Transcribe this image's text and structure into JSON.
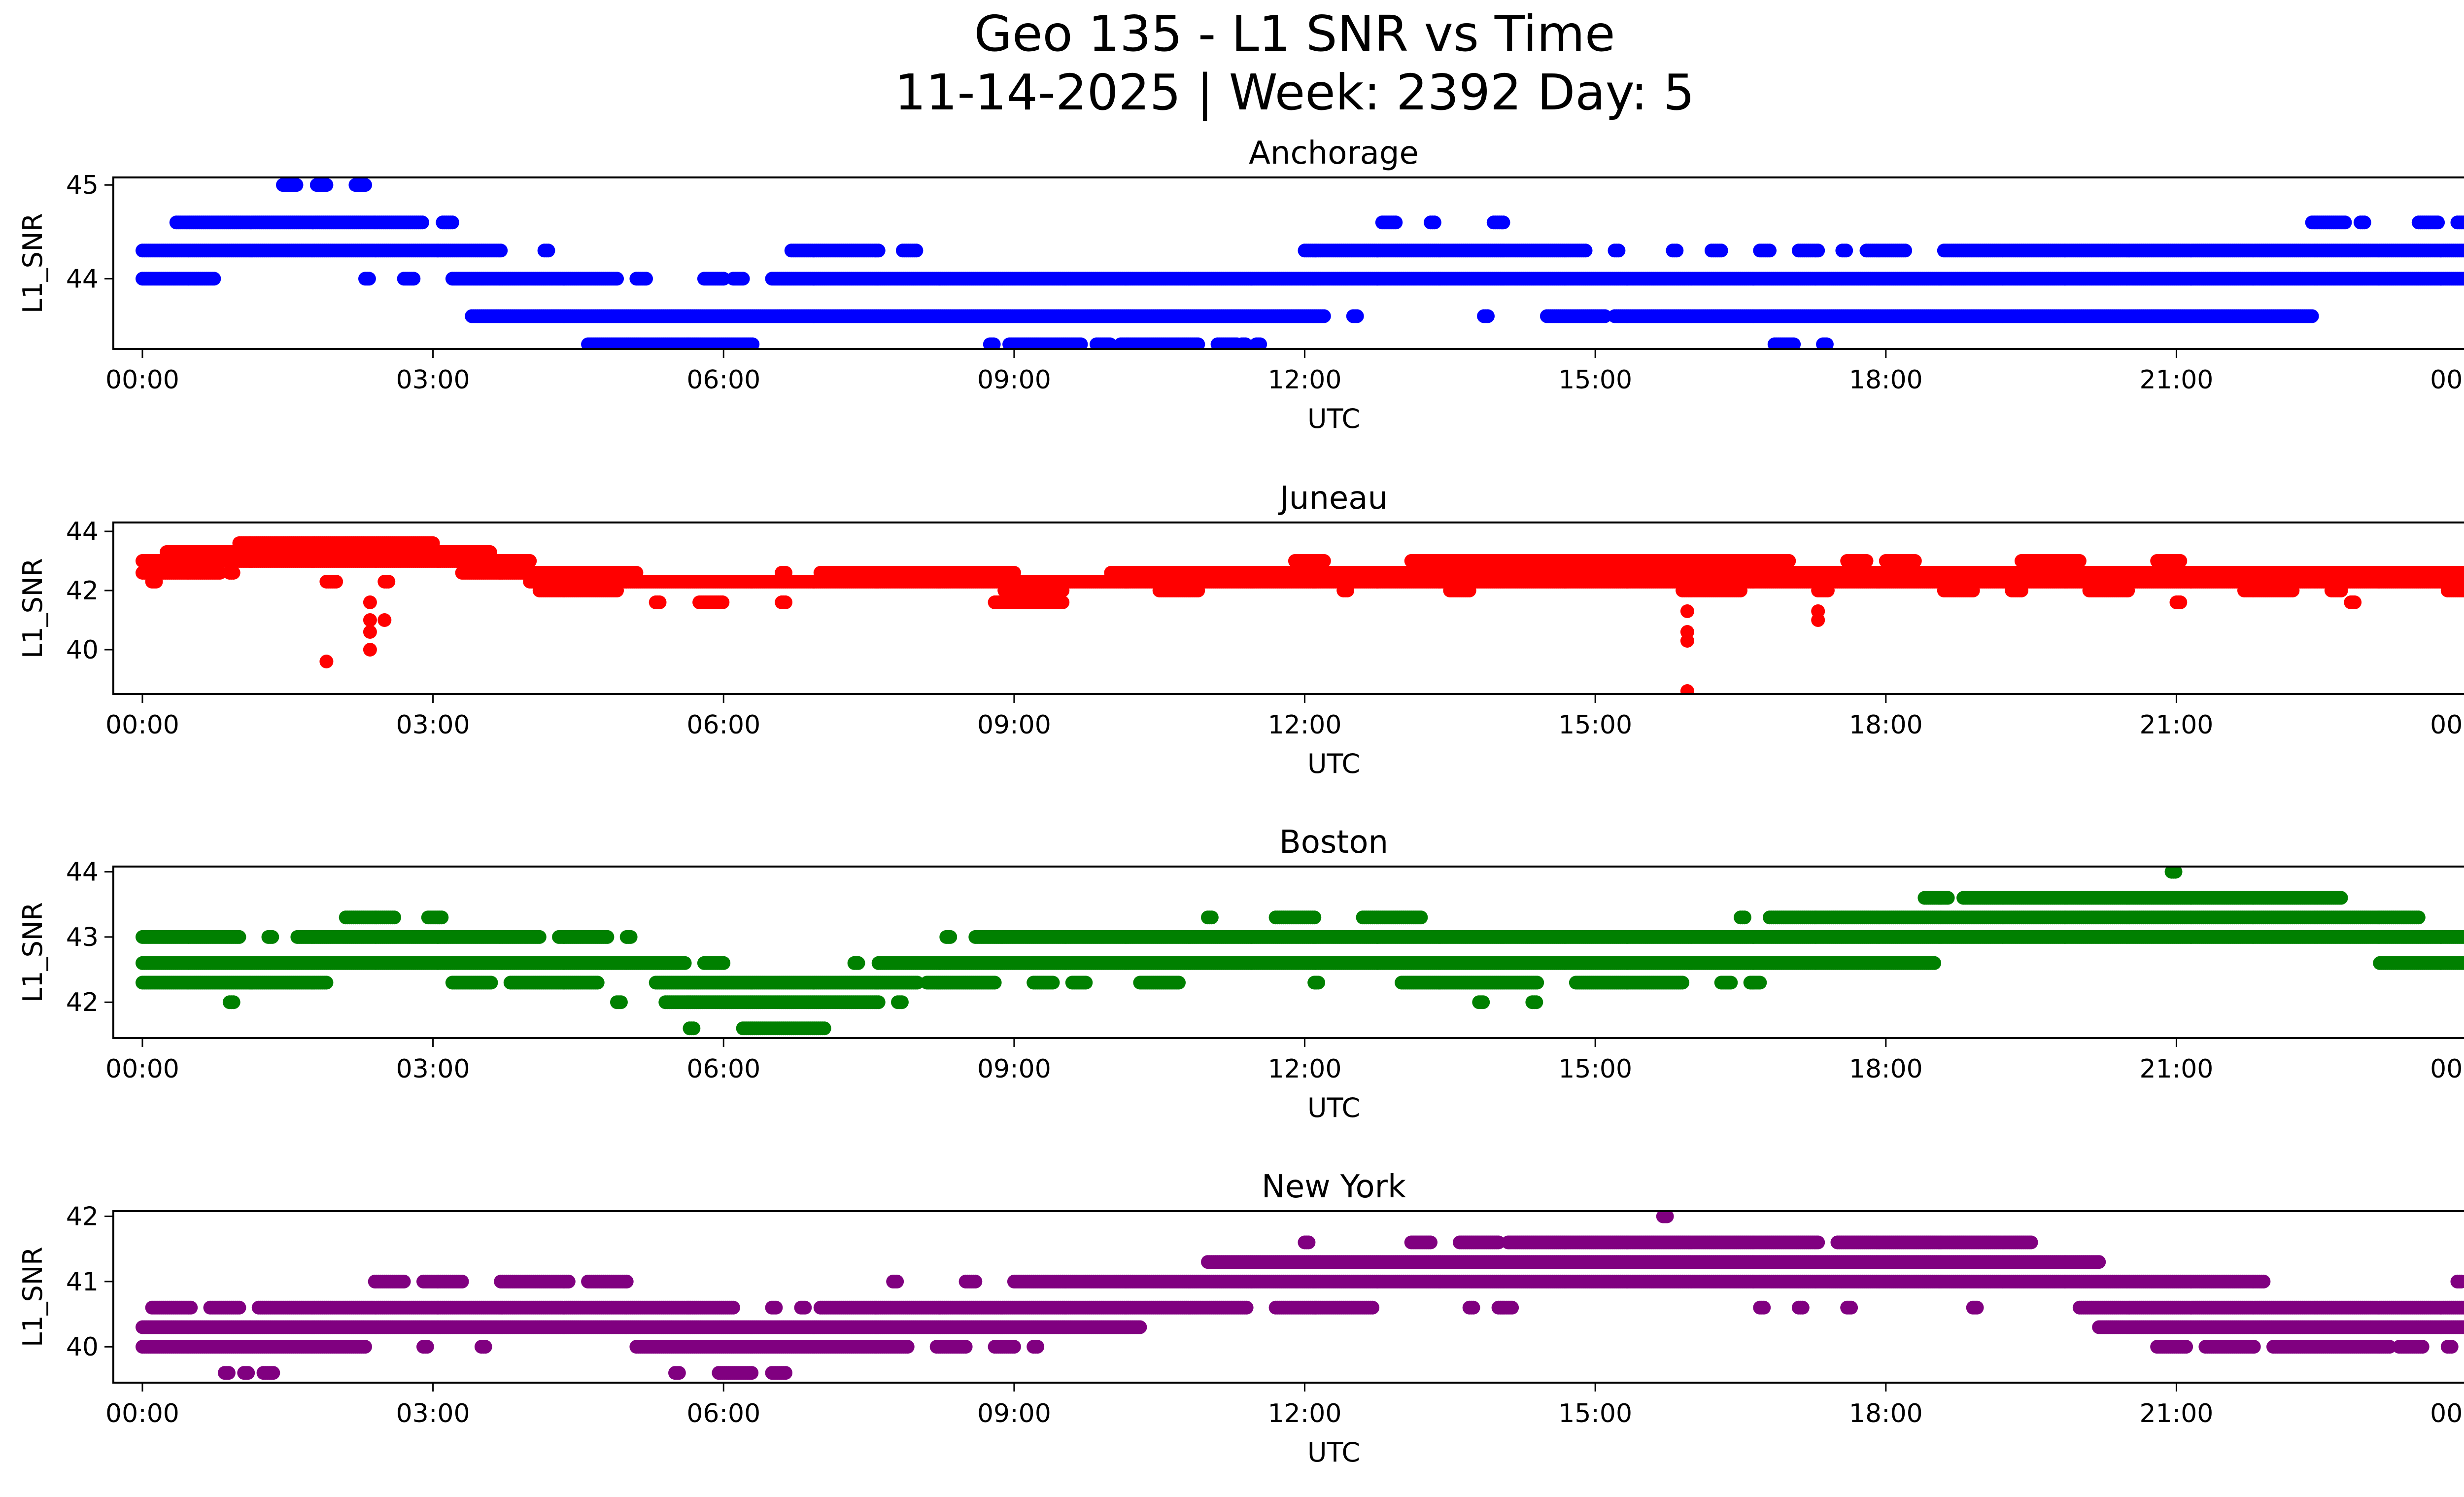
{
  "title_line1": "Geo 135 - L1 SNR vs Time",
  "title_line2": "11-14-2025 | Week: 2392 Day: 5",
  "chart_data": [
    {
      "type": "scatter",
      "title": "Anchorage",
      "color": "#0000ff",
      "xlabel": "UTC",
      "ylabel": "L1_SNR",
      "xlim": [
        -0.3,
        24.9
      ],
      "ylim": [
        43.25,
        45.08
      ],
      "yticks": [
        44,
        45
      ],
      "ytick_labels": [
        "44",
        "45"
      ],
      "xticks": [
        0,
        3,
        6,
        9,
        12,
        15,
        18,
        21,
        24
      ],
      "xtick_labels": [
        "00:00",
        "03:00",
        "06:00",
        "09:00",
        "12:00",
        "15:00",
        "18:00",
        "21:00",
        "00:00"
      ],
      "levels": [
        {
          "y": 45.0,
          "segments": [
            [
              1.45,
              1.6
            ],
            [
              1.8,
              1.9
            ],
            [
              2.2,
              2.3
            ]
          ]
        },
        {
          "y": 44.6,
          "segments": [
            [
              0.35,
              2.9
            ],
            [
              3.1,
              3.2
            ],
            [
              12.8,
              12.95
            ],
            [
              13.3,
              13.35
            ],
            [
              13.95,
              14.05
            ],
            [
              22.4,
              22.75
            ],
            [
              22.9,
              22.95
            ],
            [
              23.5,
              23.7
            ],
            [
              23.9,
              24.0
            ]
          ]
        },
        {
          "y": 44.3,
          "segments": [
            [
              0.0,
              3.7
            ],
            [
              4.15,
              4.2
            ],
            [
              6.7,
              7.6
            ],
            [
              7.85,
              8.0
            ],
            [
              12.0,
              14.9
            ],
            [
              15.2,
              15.25
            ],
            [
              15.8,
              15.85
            ],
            [
              16.2,
              16.3
            ],
            [
              16.7,
              16.8
            ],
            [
              17.1,
              17.3
            ],
            [
              17.55,
              17.6
            ],
            [
              17.8,
              18.2
            ],
            [
              18.6,
              24.0
            ]
          ]
        },
        {
          "y": 44.0,
          "segments": [
            [
              0.0,
              0.75
            ],
            [
              2.3,
              2.35
            ],
            [
              2.7,
              2.8
            ],
            [
              3.2,
              4.9
            ],
            [
              5.1,
              5.2
            ],
            [
              5.8,
              6.0
            ],
            [
              6.1,
              6.2
            ],
            [
              6.5,
              24.0
            ]
          ]
        },
        {
          "y": 43.6,
          "segments": [
            [
              3.4,
              12.2
            ],
            [
              12.5,
              12.55
            ],
            [
              13.85,
              13.9
            ],
            [
              14.5,
              15.1
            ],
            [
              15.2,
              22.4
            ]
          ]
        },
        {
          "y": 43.3,
          "segments": [
            [
              4.6,
              6.3
            ],
            [
              8.75,
              8.8
            ],
            [
              8.95,
              9.7
            ],
            [
              9.85,
              10.0
            ],
            [
              10.1,
              10.9
            ],
            [
              11.1,
              11.3
            ],
            [
              11.35,
              11.4
            ],
            [
              11.5,
              11.55
            ],
            [
              16.85,
              17.05
            ],
            [
              17.35,
              17.4
            ]
          ]
        }
      ],
      "points": []
    },
    {
      "type": "scatter",
      "title": "Juneau",
      "color": "#ff0000",
      "xlabel": "UTC",
      "ylabel": "L1_SNR",
      "xlim": [
        -0.3,
        24.9
      ],
      "ylim": [
        38.5,
        44.3
      ],
      "yticks": [
        40,
        42,
        44
      ],
      "ytick_labels": [
        "40",
        "42",
        "44"
      ],
      "xticks": [
        0,
        3,
        6,
        9,
        12,
        15,
        18,
        21,
        24
      ],
      "xtick_labels": [
        "00:00",
        "03:00",
        "06:00",
        "09:00",
        "12:00",
        "15:00",
        "18:00",
        "21:00",
        "00:00"
      ],
      "levels": [
        {
          "y": 43.6,
          "segments": [
            [
              1.0,
              3.0
            ]
          ]
        },
        {
          "y": 43.3,
          "segments": [
            [
              0.25,
              3.6
            ]
          ]
        },
        {
          "y": 43.0,
          "segments": [
            [
              0.0,
              4.0
            ],
            [
              11.9,
              12.2
            ],
            [
              13.1,
              17.0
            ],
            [
              17.6,
              17.8
            ],
            [
              18.0,
              18.3
            ],
            [
              19.4,
              20.0
            ],
            [
              20.8,
              21.05
            ]
          ]
        },
        {
          "y": 42.6,
          "segments": [
            [
              0.0,
              0.8
            ],
            [
              0.9,
              0.95
            ],
            [
              3.3,
              5.1
            ],
            [
              6.6,
              6.65
            ],
            [
              7.0,
              9.0
            ],
            [
              10.0,
              24.0
            ]
          ]
        },
        {
          "y": 42.3,
          "segments": [
            [
              0.1,
              0.15
            ],
            [
              1.9,
              2.0
            ],
            [
              2.5,
              2.55
            ],
            [
              4.0,
              24.0
            ]
          ]
        },
        {
          "y": 42.0,
          "segments": [
            [
              4.1,
              4.9
            ],
            [
              8.9,
              9.5
            ],
            [
              10.5,
              10.9
            ],
            [
              12.4,
              12.45
            ],
            [
              13.5,
              13.7
            ],
            [
              15.9,
              16.5
            ],
            [
              17.3,
              17.4
            ],
            [
              18.6,
              18.9
            ],
            [
              19.3,
              19.4
            ],
            [
              20.1,
              20.5
            ],
            [
              21.7,
              22.2
            ],
            [
              22.6,
              22.7
            ],
            [
              23.8,
              24.0
            ]
          ]
        },
        {
          "y": 41.6,
          "segments": [
            [
              5.3,
              5.35
            ],
            [
              5.75,
              6.0
            ],
            [
              6.6,
              6.65
            ],
            [
              8.8,
              9.5
            ],
            [
              21.0,
              21.05
            ],
            [
              22.8,
              22.85
            ]
          ]
        }
      ],
      "points": [
        {
          "x": 1.9,
          "y": 39.6
        },
        {
          "x": 2.35,
          "y": 41.6
        },
        {
          "x": 2.35,
          "y": 41.0
        },
        {
          "x": 2.35,
          "y": 40.6
        },
        {
          "x": 2.35,
          "y": 40.0
        },
        {
          "x": 2.5,
          "y": 41.0
        },
        {
          "x": 15.95,
          "y": 41.3
        },
        {
          "x": 15.95,
          "y": 40.6
        },
        {
          "x": 15.95,
          "y": 40.3
        },
        {
          "x": 15.95,
          "y": 38.6
        },
        {
          "x": 17.3,
          "y": 41.3
        },
        {
          "x": 17.3,
          "y": 41.0
        }
      ]
    },
    {
      "type": "scatter",
      "title": "Boston",
      "color": "#008000",
      "xlabel": "UTC",
      "ylabel": "L1_SNR",
      "xlim": [
        -0.3,
        24.9
      ],
      "ylim": [
        41.45,
        44.08
      ],
      "yticks": [
        42,
        43,
        44
      ],
      "ytick_labels": [
        "42",
        "43",
        "44"
      ],
      "xticks": [
        0,
        3,
        6,
        9,
        12,
        15,
        18,
        21,
        24
      ],
      "xtick_labels": [
        "00:00",
        "03:00",
        "06:00",
        "09:00",
        "12:00",
        "15:00",
        "18:00",
        "21:00",
        "00:00"
      ],
      "levels": [
        {
          "y": 44.0,
          "segments": [
            [
              20.95,
              21.0
            ]
          ]
        },
        {
          "y": 43.6,
          "segments": [
            [
              18.4,
              18.65
            ],
            [
              18.8,
              22.7
            ]
          ]
        },
        {
          "y": 43.3,
          "segments": [
            [
              2.1,
              2.6
            ],
            [
              2.95,
              3.1
            ],
            [
              11.0,
              11.05
            ],
            [
              11.7,
              12.1
            ],
            [
              12.6,
              13.2
            ],
            [
              16.5,
              16.55
            ],
            [
              16.8,
              23.5
            ]
          ]
        },
        {
          "y": 43.0,
          "segments": [
            [
              0.0,
              1.0
            ],
            [
              1.3,
              1.35
            ],
            [
              1.6,
              4.1
            ],
            [
              4.3,
              4.8
            ],
            [
              5.0,
              5.05
            ],
            [
              8.3,
              8.35
            ],
            [
              8.6,
              24.0
            ]
          ]
        },
        {
          "y": 42.6,
          "segments": [
            [
              0.0,
              5.6
            ],
            [
              5.8,
              6.0
            ],
            [
              7.35,
              7.4
            ],
            [
              7.6,
              18.5
            ],
            [
              23.1,
              24.0
            ]
          ]
        },
        {
          "y": 42.3,
          "segments": [
            [
              0.0,
              1.9
            ],
            [
              3.2,
              3.6
            ],
            [
              3.8,
              4.7
            ],
            [
              5.3,
              8.0
            ],
            [
              8.1,
              8.8
            ],
            [
              9.2,
              9.4
            ],
            [
              9.6,
              9.75
            ],
            [
              10.3,
              10.7
            ],
            [
              12.1,
              12.15
            ],
            [
              13.0,
              14.4
            ],
            [
              14.8,
              15.9
            ],
            [
              16.3,
              16.4
            ],
            [
              16.6,
              16.7
            ]
          ]
        },
        {
          "y": 42.0,
          "segments": [
            [
              0.9,
              0.95
            ],
            [
              4.9,
              4.95
            ],
            [
              5.4,
              7.6
            ],
            [
              7.8,
              7.85
            ],
            [
              13.8,
              13.85
            ],
            [
              14.35,
              14.4
            ]
          ]
        },
        {
          "y": 41.6,
          "segments": [
            [
              5.65,
              5.7
            ],
            [
              6.2,
              7.05
            ]
          ]
        }
      ],
      "points": []
    },
    {
      "type": "scatter",
      "title": "New York",
      "color": "#800080",
      "xlabel": "UTC",
      "ylabel": "L1_SNR",
      "xlim": [
        -0.3,
        24.9
      ],
      "ylim": [
        39.45,
        42.08
      ],
      "yticks": [
        40,
        41,
        42
      ],
      "ytick_labels": [
        "40",
        "41",
        "42"
      ],
      "xticks": [
        0,
        3,
        6,
        9,
        12,
        15,
        18,
        21,
        24
      ],
      "xtick_labels": [
        "00:00",
        "03:00",
        "06:00",
        "09:00",
        "12:00",
        "15:00",
        "18:00",
        "21:00",
        "00:00"
      ],
      "levels": [
        {
          "y": 42.0,
          "segments": [
            [
              15.7,
              15.75
            ]
          ]
        },
        {
          "y": 41.6,
          "segments": [
            [
              12.0,
              12.05
            ],
            [
              13.1,
              13.3
            ],
            [
              13.6,
              14.0
            ],
            [
              14.1,
              17.3
            ],
            [
              17.5,
              19.5
            ]
          ]
        },
        {
          "y": 41.3,
          "segments": [
            [
              11.0,
              20.2
            ]
          ]
        },
        {
          "y": 41.0,
          "segments": [
            [
              2.4,
              2.7
            ],
            [
              2.9,
              3.3
            ],
            [
              3.7,
              4.4
            ],
            [
              4.6,
              5.0
            ],
            [
              7.75,
              7.8
            ],
            [
              8.5,
              8.6
            ],
            [
              9.0,
              21.9
            ],
            [
              23.9,
              23.95
            ]
          ]
        },
        {
          "y": 40.6,
          "segments": [
            [
              0.1,
              0.5
            ],
            [
              0.7,
              1.0
            ],
            [
              1.2,
              6.1
            ],
            [
              6.5,
              6.55
            ],
            [
              6.8,
              6.85
            ],
            [
              7.0,
              11.4
            ],
            [
              11.7,
              12.7
            ],
            [
              13.7,
              13.75
            ],
            [
              14.0,
              14.15
            ],
            [
              16.7,
              16.75
            ],
            [
              17.1,
              17.15
            ],
            [
              17.6,
              17.65
            ],
            [
              18.9,
              18.95
            ],
            [
              20.0,
              24.0
            ]
          ]
        },
        {
          "y": 40.3,
          "segments": [
            [
              0.0,
              10.3
            ],
            [
              20.2,
              24.0
            ]
          ]
        },
        {
          "y": 40.0,
          "segments": [
            [
              0.0,
              2.3
            ],
            [
              2.9,
              2.95
            ],
            [
              3.5,
              3.55
            ],
            [
              5.1,
              7.9
            ],
            [
              8.2,
              8.5
            ],
            [
              8.8,
              9.0
            ],
            [
              9.2,
              9.25
            ],
            [
              20.8,
              21.1
            ],
            [
              21.3,
              21.8
            ],
            [
              22.0,
              23.2
            ],
            [
              23.3,
              23.55
            ],
            [
              23.8,
              23.85
            ]
          ]
        },
        {
          "y": 39.6,
          "segments": [
            [
              0.85,
              0.9
            ],
            [
              1.05,
              1.1
            ],
            [
              1.25,
              1.35
            ],
            [
              5.5,
              5.55
            ],
            [
              5.95,
              6.3
            ],
            [
              6.5,
              6.65
            ]
          ]
        }
      ],
      "points": []
    }
  ]
}
